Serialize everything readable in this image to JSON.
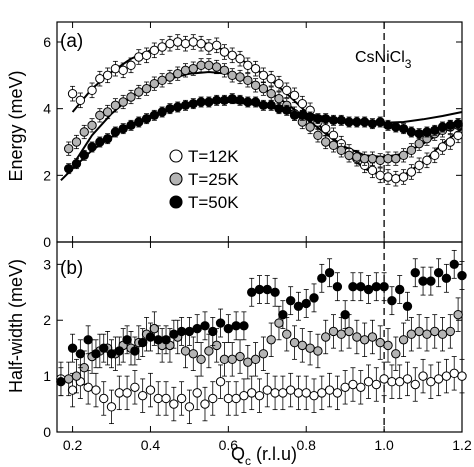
{
  "chart_data": [
    {
      "type": "scatter",
      "panel_label": "(a)",
      "annotation": "CsNiCl",
      "annotation_sub": "3",
      "ylabel": "Energy (meV)",
      "xlim": [
        0.16,
        1.2
      ],
      "ylim": [
        0,
        6.6
      ],
      "yticks": [
        0,
        2,
        4,
        6
      ],
      "xticks": [
        0.2,
        0.4,
        0.6,
        0.8,
        1.0,
        1.2
      ],
      "vline_x": 1.0,
      "legend": {
        "placement": "center-left",
        "entries": [
          "T=12K",
          "T=25K",
          "T=50K"
        ]
      },
      "series": [
        {
          "name": "T=12K",
          "marker": "open-circle",
          "x": [
            0.2,
            0.22,
            0.25,
            0.27,
            0.29,
            0.31,
            0.33,
            0.35,
            0.37,
            0.39,
            0.41,
            0.43,
            0.45,
            0.47,
            0.49,
            0.51,
            0.53,
            0.55,
            0.57,
            0.59,
            0.61,
            0.63,
            0.65,
            0.67,
            0.69,
            0.71,
            0.73,
            0.75,
            0.77,
            0.79,
            0.81,
            0.83,
            0.85,
            0.87,
            0.89,
            0.91,
            0.93,
            0.95,
            0.97,
            0.99,
            1.01,
            1.03,
            1.05,
            1.07,
            1.09,
            1.11,
            1.13,
            1.15,
            1.17,
            1.19
          ],
          "y": [
            4.45,
            4.25,
            4.55,
            4.9,
            5.0,
            5.2,
            5.15,
            5.3,
            5.55,
            5.6,
            5.75,
            5.85,
            5.95,
            6.0,
            5.95,
            6.0,
            5.95,
            5.85,
            5.9,
            5.7,
            5.6,
            5.5,
            5.3,
            5.2,
            5.0,
            4.9,
            4.75,
            4.55,
            4.4,
            4.15,
            3.95,
            3.6,
            3.4,
            3.2,
            2.95,
            2.7,
            2.5,
            2.3,
            2.15,
            2.0,
            1.95,
            1.9,
            1.95,
            2.1,
            2.3,
            2.45,
            2.6,
            2.85,
            3.0,
            3.2
          ],
          "yerr": 0.22
        },
        {
          "name": "T=25K",
          "marker": "gray-circle",
          "x": [
            0.19,
            0.21,
            0.23,
            0.25,
            0.27,
            0.29,
            0.31,
            0.33,
            0.35,
            0.37,
            0.39,
            0.41,
            0.43,
            0.45,
            0.47,
            0.49,
            0.51,
            0.53,
            0.55,
            0.57,
            0.59,
            0.61,
            0.63,
            0.65,
            0.67,
            0.69,
            0.71,
            0.73,
            0.75,
            0.77,
            0.79,
            0.81,
            0.83,
            0.85,
            0.87,
            0.89,
            0.91,
            0.93,
            0.95,
            0.97,
            0.99,
            1.01,
            1.03,
            1.05,
            1.07,
            1.09,
            1.11,
            1.13,
            1.15,
            1.17,
            1.19
          ],
          "y": [
            2.8,
            3.0,
            3.3,
            3.5,
            3.8,
            3.9,
            4.1,
            4.2,
            4.35,
            4.5,
            4.6,
            4.75,
            4.85,
            4.95,
            5.05,
            5.15,
            5.2,
            5.3,
            5.3,
            5.25,
            5.15,
            5.0,
            4.95,
            4.85,
            4.7,
            4.6,
            4.45,
            4.3,
            4.1,
            3.85,
            3.6,
            3.45,
            3.2,
            3.0,
            2.9,
            2.75,
            2.6,
            2.55,
            2.5,
            2.5,
            2.45,
            2.5,
            2.5,
            2.6,
            2.75,
            2.95,
            3.1,
            3.25,
            3.35,
            3.45,
            3.5
          ],
          "yerr": 0.2
        },
        {
          "name": "T=50K",
          "marker": "filled-circle",
          "x": [
            0.19,
            0.21,
            0.23,
            0.25,
            0.27,
            0.29,
            0.31,
            0.33,
            0.35,
            0.37,
            0.39,
            0.41,
            0.43,
            0.45,
            0.47,
            0.49,
            0.51,
            0.53,
            0.55,
            0.57,
            0.59,
            0.61,
            0.63,
            0.65,
            0.67,
            0.69,
            0.71,
            0.73,
            0.75,
            0.77,
            0.79,
            0.81,
            0.83,
            0.85,
            0.87,
            0.89,
            0.91,
            0.93,
            0.95,
            0.97,
            0.99,
            1.01,
            1.03,
            1.05,
            1.07,
            1.09,
            1.11,
            1.13,
            1.15,
            1.17,
            1.19
          ],
          "y": [
            2.2,
            2.35,
            2.6,
            2.85,
            3.0,
            3.1,
            3.3,
            3.4,
            3.5,
            3.6,
            3.7,
            3.8,
            3.9,
            4.0,
            4.05,
            4.1,
            4.15,
            4.2,
            4.2,
            4.25,
            4.25,
            4.3,
            4.25,
            4.2,
            4.2,
            4.1,
            4.1,
            4.0,
            3.95,
            3.8,
            3.8,
            3.75,
            3.7,
            3.7,
            3.65,
            3.65,
            3.6,
            3.6,
            3.6,
            3.55,
            3.6,
            3.5,
            3.45,
            3.4,
            3.3,
            3.25,
            3.3,
            3.35,
            3.45,
            3.5,
            3.55
          ],
          "yerr": 0.15
        }
      ],
      "fit_curves": [
        {
          "x": [
            0.2,
            0.25,
            0.3,
            0.35,
            0.4,
            0.45,
            0.5,
            0.55,
            0.6,
            0.65,
            0.7,
            0.75,
            0.8,
            0.85,
            0.9,
            0.95,
            1.0,
            1.05,
            1.1,
            1.15,
            1.2
          ],
          "y": [
            3.9,
            4.6,
            5.1,
            5.5,
            5.75,
            5.95,
            6.0,
            5.95,
            5.7,
            5.35,
            4.95,
            4.45,
            3.9,
            3.3,
            2.7,
            2.2,
            1.95,
            2.0,
            2.4,
            2.95,
            3.4
          ]
        },
        {
          "x": [
            0.2,
            0.25,
            0.3,
            0.35,
            0.4,
            0.45,
            0.5,
            0.55,
            0.6,
            0.65,
            0.7,
            0.75,
            0.8,
            0.85,
            0.9,
            0.95,
            1.0,
            1.05,
            1.1,
            1.15,
            1.2
          ],
          "y": [
            2.3,
            3.2,
            3.85,
            4.35,
            4.7,
            4.9,
            5.05,
            5.1,
            5.05,
            4.85,
            4.55,
            4.15,
            3.7,
            3.25,
            2.85,
            2.6,
            2.55,
            2.65,
            2.95,
            3.3,
            3.55
          ]
        },
        {
          "x": [
            0.17,
            0.2,
            0.25,
            0.3,
            0.35,
            0.4,
            0.45,
            0.5,
            0.55,
            0.6,
            0.65,
            0.7,
            0.75,
            0.8,
            0.85,
            0.9,
            0.95,
            1.0,
            1.05,
            1.1,
            1.15,
            1.2
          ],
          "y": [
            1.85,
            2.2,
            2.75,
            3.15,
            3.5,
            3.8,
            4.0,
            4.15,
            4.2,
            4.2,
            4.15,
            4.05,
            3.95,
            3.85,
            3.75,
            3.65,
            3.6,
            3.58,
            3.6,
            3.68,
            3.78,
            3.9
          ]
        }
      ]
    },
    {
      "type": "scatter",
      "panel_label": "(b)",
      "xlabel": "Q",
      "xlabel_sub": "c",
      "xlabel_unit": " (r.l.u)",
      "ylabel": "Half-width (meV)",
      "xlim": [
        0.16,
        1.2
      ],
      "ylim": [
        0,
        3.4
      ],
      "yticks": [
        0,
        1,
        2,
        3
      ],
      "xticks": [
        0.2,
        0.4,
        0.6,
        0.8,
        1.0,
        1.2
      ],
      "xticklabels": [
        "0.2",
        "0.4",
        "0.6",
        "0.8",
        "1.0",
        "1.2"
      ],
      "vline_x": 1.0,
      "series": [
        {
          "name": "T=12K",
          "marker": "open-circle",
          "x": [
            0.17,
            0.2,
            0.22,
            0.24,
            0.26,
            0.28,
            0.3,
            0.32,
            0.34,
            0.36,
            0.38,
            0.4,
            0.42,
            0.44,
            0.46,
            0.48,
            0.5,
            0.52,
            0.54,
            0.56,
            0.58,
            0.6,
            0.62,
            0.64,
            0.66,
            0.68,
            0.7,
            0.72,
            0.74,
            0.76,
            0.78,
            0.8,
            0.82,
            0.84,
            0.86,
            0.88,
            0.9,
            0.92,
            0.94,
            0.96,
            0.98,
            1.0,
            1.02,
            1.04,
            1.06,
            1.08,
            1.1,
            1.12,
            1.14,
            1.16,
            1.18,
            1.2
          ],
          "y": [
            0.95,
            0.75,
            0.9,
            0.8,
            0.75,
            0.6,
            0.45,
            0.7,
            0.7,
            0.8,
            0.65,
            0.75,
            0.6,
            0.6,
            0.5,
            0.6,
            0.45,
            0.7,
            0.5,
            0.6,
            0.9,
            0.6,
            0.6,
            0.65,
            0.7,
            0.65,
            0.75,
            0.7,
            0.7,
            0.75,
            0.7,
            0.7,
            0.65,
            0.7,
            0.75,
            0.7,
            0.8,
            0.85,
            0.8,
            0.9,
            0.85,
            0.95,
            0.9,
            0.9,
            0.95,
            0.85,
            1.0,
            0.9,
            0.95,
            1.0,
            1.05,
            1.0
          ],
          "yerr": 0.3
        },
        {
          "name": "T=25K",
          "marker": "gray-circle",
          "x": [
            0.19,
            0.21,
            0.23,
            0.25,
            0.27,
            0.29,
            0.31,
            0.33,
            0.35,
            0.37,
            0.39,
            0.41,
            0.43,
            0.45,
            0.47,
            0.49,
            0.51,
            0.53,
            0.55,
            0.57,
            0.59,
            0.61,
            0.63,
            0.65,
            0.67,
            0.69,
            0.71,
            0.73,
            0.75,
            0.77,
            0.79,
            0.81,
            0.83,
            0.85,
            0.87,
            0.89,
            0.91,
            0.93,
            0.95,
            0.97,
            0.99,
            1.01,
            1.03,
            1.05,
            1.07,
            1.09,
            1.11,
            1.13,
            1.15,
            1.17,
            1.19
          ],
          "y": [
            0.95,
            1.0,
            1.15,
            1.35,
            1.45,
            1.5,
            1.4,
            1.55,
            1.5,
            1.6,
            1.75,
            1.85,
            1.55,
            1.55,
            1.7,
            1.45,
            1.4,
            1.3,
            1.45,
            1.55,
            1.3,
            1.3,
            1.35,
            1.25,
            1.3,
            1.4,
            1.65,
            1.95,
            1.75,
            1.6,
            1.55,
            1.5,
            1.45,
            1.7,
            1.8,
            1.75,
            1.8,
            1.7,
            1.65,
            1.7,
            1.6,
            1.55,
            1.4,
            1.65,
            1.75,
            1.8,
            1.75,
            1.8,
            1.75,
            1.8,
            2.1
          ],
          "yerr": 0.3
        },
        {
          "name": "T=50K",
          "marker": "filled-circle",
          "x": [
            0.17,
            0.2,
            0.22,
            0.24,
            0.26,
            0.28,
            0.3,
            0.32,
            0.34,
            0.36,
            0.38,
            0.4,
            0.42,
            0.44,
            0.46,
            0.48,
            0.5,
            0.52,
            0.54,
            0.56,
            0.58,
            0.6,
            0.62,
            0.64,
            0.66,
            0.68,
            0.7,
            0.72,
            0.74,
            0.76,
            0.78,
            0.8,
            0.82,
            0.84,
            0.86,
            0.88,
            0.9,
            0.92,
            0.94,
            0.96,
            0.98,
            1.0,
            1.02,
            1.04,
            1.06,
            1.08,
            1.1,
            1.12,
            1.14,
            1.16,
            1.18,
            1.2
          ],
          "y": [
            0.9,
            1.5,
            1.4,
            1.65,
            1.4,
            1.5,
            1.4,
            1.45,
            1.65,
            1.45,
            1.6,
            1.7,
            1.65,
            1.65,
            1.75,
            1.8,
            1.8,
            1.85,
            1.9,
            1.8,
            1.95,
            1.85,
            1.9,
            1.9,
            2.5,
            2.55,
            2.55,
            2.5,
            2.1,
            2.35,
            2.25,
            2.3,
            2.4,
            2.75,
            2.85,
            2.6,
            2.1,
            2.6,
            2.6,
            2.55,
            2.6,
            2.6,
            2.35,
            2.55,
            2.25,
            2.85,
            2.7,
            2.7,
            2.85,
            2.75,
            3.0,
            2.8
          ],
          "yerr": 0.25
        }
      ]
    }
  ]
}
